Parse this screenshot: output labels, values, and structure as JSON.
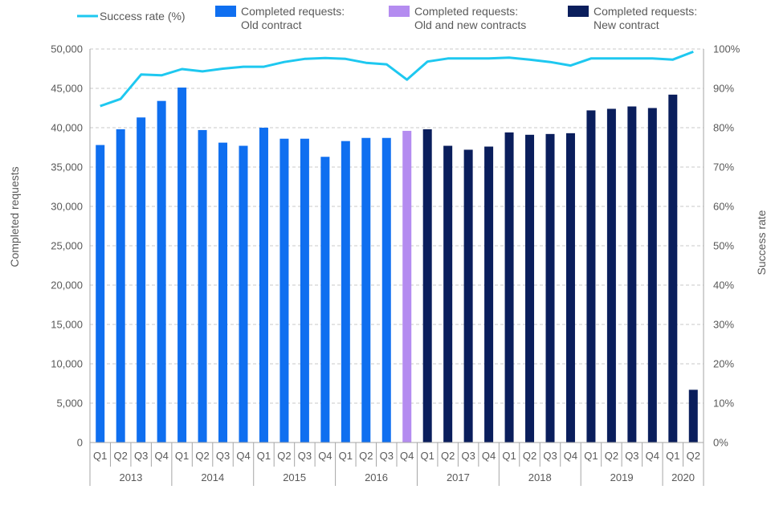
{
  "chart_data": {
    "type": "bar",
    "legend": [
      {
        "kind": "line",
        "label": "Success rate (%)",
        "color": "#1EC8F0"
      },
      {
        "kind": "bar",
        "label_lines": [
          "Completed requests:",
          "Old contract"
        ],
        "color": "#0F6FF0"
      },
      {
        "kind": "bar",
        "label_lines": [
          "Completed requests:",
          "Old and new contracts"
        ],
        "color": "#B48CF0"
      },
      {
        "kind": "bar",
        "label_lines": [
          "Completed requests:",
          "New contract"
        ],
        "color": "#0A1E5C"
      }
    ],
    "ylabel": "Completed requests",
    "y2label": "Success rate",
    "ylim": [
      0,
      50000
    ],
    "y2lim": [
      0,
      100
    ],
    "y_ticks": [
      "0",
      "5,000",
      "10,000",
      "15,000",
      "20,000",
      "25,000",
      "30,000",
      "35,000",
      "40,000",
      "45,000",
      "50,000"
    ],
    "y2_ticks": [
      "0%",
      "10%",
      "20%",
      "30%",
      "40%",
      "50%",
      "60%",
      "70%",
      "80%",
      "90%",
      "100%"
    ],
    "grid": true,
    "quarters": [
      "Q1",
      "Q2",
      "Q3",
      "Q4",
      "Q1",
      "Q2",
      "Q3",
      "Q4",
      "Q1",
      "Q2",
      "Q3",
      "Q4",
      "Q1",
      "Q2",
      "Q3",
      "Q4",
      "Q1",
      "Q2",
      "Q3",
      "Q4",
      "Q1",
      "Q2",
      "Q3",
      "Q4",
      "Q1",
      "Q2",
      "Q3",
      "Q4",
      "Q1",
      "Q2"
    ],
    "years": [
      {
        "label": "2013",
        "count": 4
      },
      {
        "label": "2014",
        "count": 4
      },
      {
        "label": "2015",
        "count": 4
      },
      {
        "label": "2016",
        "count": 4
      },
      {
        "label": "2017",
        "count": 4
      },
      {
        "label": "2018",
        "count": 4
      },
      {
        "label": "2019",
        "count": 4
      },
      {
        "label": "2020",
        "count": 2
      }
    ],
    "bar_values": [
      37800,
      39800,
      41300,
      43400,
      45100,
      39700,
      38100,
      37700,
      40000,
      38600,
      38600,
      36300,
      38300,
      38700,
      38700,
      39600,
      39800,
      37700,
      37200,
      37600,
      39400,
      39100,
      39200,
      39300,
      42200,
      42400,
      42700,
      42500,
      44200,
      6700
    ],
    "bar_groups": [
      "old",
      "old",
      "old",
      "old",
      "old",
      "old",
      "old",
      "old",
      "old",
      "old",
      "old",
      "old",
      "old",
      "old",
      "old",
      "mixed",
      "new",
      "new",
      "new",
      "new",
      "new",
      "new",
      "new",
      "new",
      "new",
      "new",
      "new",
      "new",
      "new",
      "new"
    ],
    "group_colors": {
      "old": "#0F6FF0",
      "mixed": "#B48CF0",
      "new": "#0A1E5C"
    },
    "success_rate": [
      85.5,
      87.3,
      93.5,
      93.3,
      94.9,
      94.3,
      95.0,
      95.5,
      95.5,
      96.7,
      97.5,
      97.7,
      97.5,
      96.5,
      96.1,
      92.2,
      96.8,
      97.6,
      97.6,
      97.6,
      97.8,
      97.3,
      96.7,
      95.8,
      97.6,
      97.6,
      97.6,
      97.6,
      97.3,
      99.3
    ],
    "line_color": "#1EC8F0"
  }
}
